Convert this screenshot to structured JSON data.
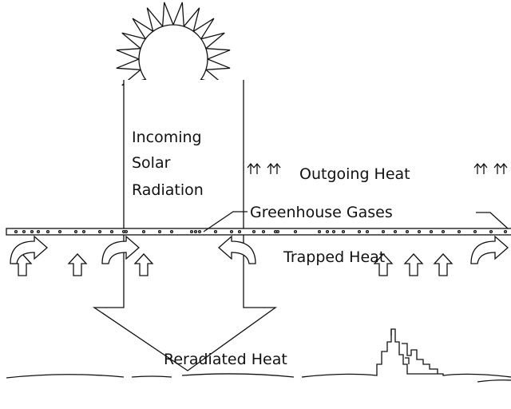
{
  "labels": {
    "incoming": [
      "Incoming",
      "Solar",
      "Radiation"
    ],
    "outgoing": "Outgoing Heat",
    "greenhouse": "Greenhouse Gases",
    "trapped": "Trapped Heat",
    "reradiated": "Reradiated Heat"
  }
}
